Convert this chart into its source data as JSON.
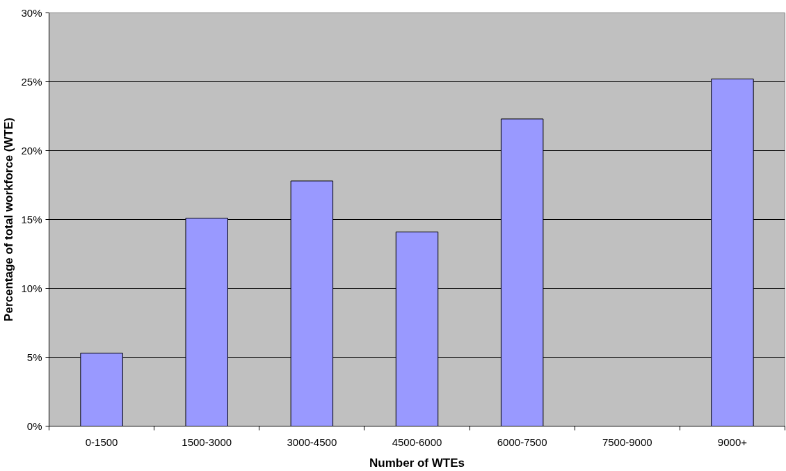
{
  "chart_data": {
    "type": "bar",
    "xlabel": "Number of WTEs",
    "ylabel": "Percentage of total workforce (WTE)",
    "categories": [
      "0-1500",
      "1500-3000",
      "3000-4500",
      "4500-6000",
      "6000-7500",
      "7500-9000",
      "9000+"
    ],
    "values": [
      5.3,
      15.1,
      17.8,
      14.1,
      22.3,
      null,
      25.2
    ],
    "color": "#9999ff",
    "ylim": [
      0,
      30
    ],
    "yticks": [
      {
        "value": 0,
        "label": "0%"
      },
      {
        "value": 5,
        "label": "5%"
      },
      {
        "value": 10,
        "label": "10%"
      },
      {
        "value": 15,
        "label": "15%"
      },
      {
        "value": 20,
        "label": "20%"
      },
      {
        "value": 25,
        "label": "25%"
      },
      {
        "value": 30,
        "label": "30%"
      }
    ],
    "grid": "y"
  }
}
